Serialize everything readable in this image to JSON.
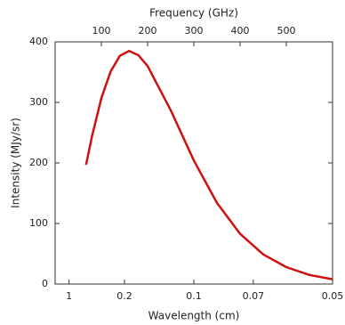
{
  "chart_data": {
    "type": "line",
    "xlabel": "Wavelength (cm)",
    "x2label": "Frequency (GHz)",
    "ylabel": "Intensity (MJy/sr)",
    "x": [
      67,
      80,
      100,
      120,
      140,
      160,
      180,
      200,
      250,
      300,
      350,
      400,
      450,
      500,
      550,
      600
    ],
    "series": [
      {
        "color": "#d01010",
        "values": [
          197,
          245,
          307,
          351,
          377,
          385,
          378,
          360,
          287,
          204,
          134,
          83,
          49,
          28,
          15,
          8
        ]
      }
    ],
    "xlim": [
      0,
      600
    ],
    "xticks": [
      100,
      200,
      300,
      400,
      500
    ],
    "x2ticks": [
      {
        "value": 30,
        "label": "1"
      },
      {
        "value": 150,
        "label": "0.2"
      },
      {
        "value": 300,
        "label": "0.1"
      },
      {
        "value": 428.6,
        "label": "0.07"
      },
      {
        "value": 600,
        "label": "0.05"
      }
    ],
    "ylim": [
      0,
      400
    ],
    "yticks": [
      0,
      100,
      200,
      300,
      400
    ]
  }
}
